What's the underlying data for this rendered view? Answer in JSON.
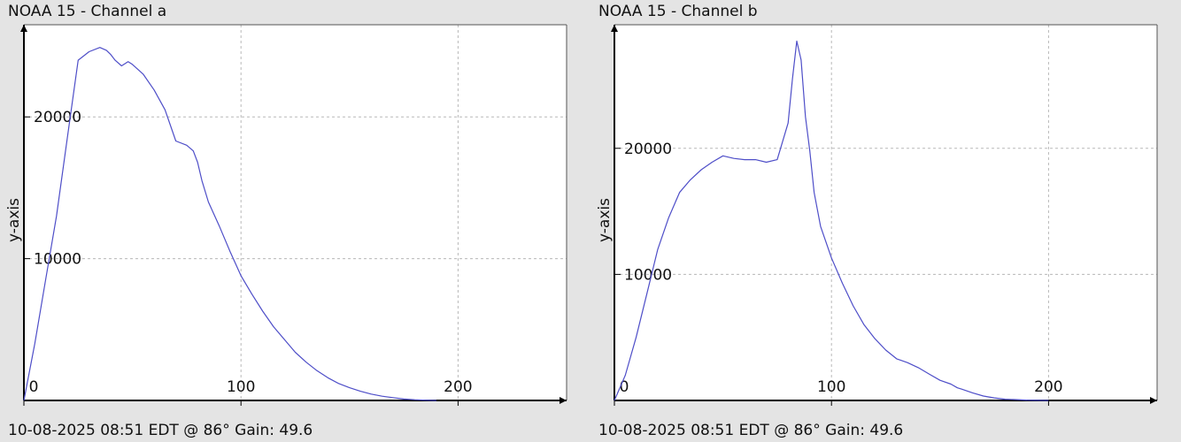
{
  "chart_data": [
    {
      "type": "line",
      "title": "NOAA 15 - Channel a",
      "caption": "10-08-2025 08:51 EDT @ 86° Gain: 49.6",
      "ylabel": "y-axis",
      "xlabel": "",
      "xlim": [
        0,
        250
      ],
      "ylim": [
        0,
        26500
      ],
      "xticks": [
        0,
        100,
        200
      ],
      "yticks": [
        10000,
        20000
      ],
      "grid": true,
      "series": [
        {
          "color": "#4e4ec8",
          "x": [
            0,
            5,
            10,
            15,
            20,
            25,
            30,
            35,
            38,
            40,
            42,
            45,
            48,
            50,
            55,
            60,
            65,
            70,
            75,
            78,
            80,
            82,
            85,
            90,
            95,
            100,
            105,
            110,
            115,
            120,
            125,
            130,
            135,
            140,
            145,
            150,
            155,
            160,
            165,
            170,
            175,
            180,
            185,
            190
          ],
          "y": [
            0,
            4000,
            8500,
            13000,
            18500,
            24000,
            24600,
            24900,
            24700,
            24400,
            24000,
            23600,
            23900,
            23700,
            23000,
            21900,
            20500,
            18300,
            18000,
            17600,
            16800,
            15500,
            14000,
            12300,
            10500,
            8800,
            7500,
            6300,
            5200,
            4300,
            3400,
            2700,
            2100,
            1600,
            1200,
            900,
            650,
            450,
            300,
            200,
            100,
            50,
            20,
            0
          ]
        }
      ]
    },
    {
      "type": "line",
      "title": "NOAA 15 - Channel b",
      "caption": "10-08-2025 08:51 EDT @ 86° Gain: 49.6",
      "ylabel": "y-axis",
      "xlabel": "",
      "xlim": [
        0,
        250
      ],
      "ylim": [
        0,
        29800
      ],
      "xticks": [
        0,
        100,
        200
      ],
      "yticks": [
        10000,
        20000
      ],
      "grid": true,
      "series": [
        {
          "color": "#4e4ec8",
          "x": [
            0,
            5,
            10,
            15,
            20,
            25,
            30,
            35,
            40,
            45,
            50,
            55,
            60,
            65,
            70,
            75,
            80,
            82,
            84,
            86,
            88,
            90,
            92,
            95,
            100,
            105,
            110,
            115,
            120,
            125,
            130,
            135,
            140,
            145,
            150,
            155,
            158,
            160,
            165,
            170,
            175,
            180,
            190,
            200
          ],
          "y": [
            0,
            2000,
            5000,
            8500,
            12000,
            14500,
            16500,
            17500,
            18300,
            18900,
            19400,
            19200,
            19100,
            19100,
            18900,
            19100,
            22000,
            25500,
            28500,
            27000,
            22500,
            19800,
            16500,
            13800,
            11300,
            9300,
            7500,
            6000,
            4900,
            4000,
            3300,
            3000,
            2600,
            2100,
            1600,
            1300,
            1000,
            900,
            600,
            350,
            200,
            100,
            30,
            0
          ]
        }
      ]
    }
  ]
}
